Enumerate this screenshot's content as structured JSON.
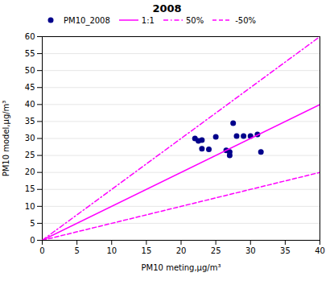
{
  "chart_data": {
    "type": "scatter",
    "title": "2008",
    "xlabel": "PM10 meting,μg/m³",
    "ylabel": "PM10 model,μg/m³",
    "xlim": [
      0,
      40
    ],
    "ylim": [
      0,
      60
    ],
    "xticks": [
      0,
      5,
      10,
      15,
      20,
      25,
      30,
      35,
      40
    ],
    "yticks": [
      0,
      5,
      10,
      15,
      20,
      25,
      30,
      35,
      40,
      45,
      50,
      55,
      60
    ],
    "grid": "y",
    "legend": "top-left",
    "series": [
      {
        "name": "PM10_2008",
        "type": "scatter",
        "marker": "circle",
        "color": "#00008B",
        "x": [
          22,
          22.5,
          23,
          23,
          24,
          25,
          26.5,
          27,
          27,
          27.5,
          28,
          29,
          30,
          31,
          31.5
        ],
        "values": [
          30,
          29.3,
          29.5,
          27,
          26.8,
          30.5,
          26.5,
          26,
          25,
          34.5,
          30.7,
          30.7,
          30.7,
          31.2,
          26
        ]
      },
      {
        "name": "1:1",
        "type": "line",
        "line_style": "solid",
        "color": "#FF00FF",
        "x": [
          0,
          40
        ],
        "values": [
          0,
          40
        ]
      },
      {
        "name": "50%",
        "type": "line",
        "line_style": "dashdot",
        "color": "#FF00FF",
        "x": [
          0,
          40
        ],
        "values": [
          0,
          60
        ]
      },
      {
        "name": "-50%",
        "type": "line",
        "line_style": "dashed",
        "color": "#FF00FF",
        "x": [
          0,
          40
        ],
        "values": [
          0,
          20
        ]
      }
    ]
  }
}
